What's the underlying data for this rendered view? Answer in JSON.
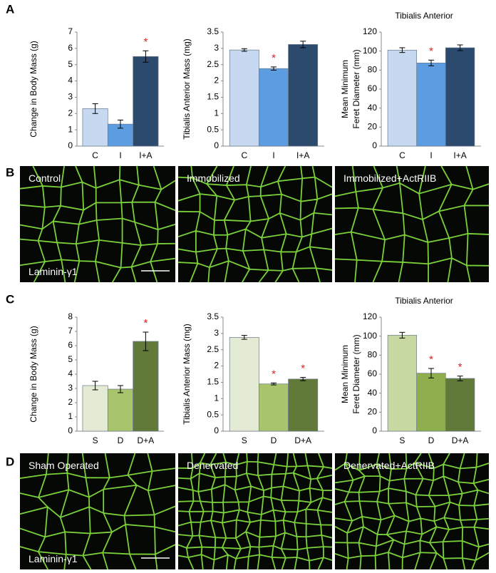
{
  "panel_labels": [
    "A",
    "B",
    "C",
    "D"
  ],
  "chart_data": [
    {
      "type": "bar",
      "ylabel": "Change  in Body Mass (g)",
      "categories": [
        "C",
        "I",
        "I+A"
      ],
      "values": [
        2.3,
        1.35,
        5.5
      ],
      "errors": [
        0.3,
        0.25,
        0.35
      ],
      "colors": [
        "#c6d9f0",
        "#5c9de2",
        "#2c4a6e"
      ],
      "markers": [
        null,
        null,
        "*"
      ],
      "ylim": [
        0,
        7
      ],
      "yticks": [
        0,
        1,
        2,
        3,
        4,
        5,
        6,
        7
      ]
    },
    {
      "type": "bar",
      "ylabel": "Tibialis Anterior Mass (mg)",
      "categories": [
        "C",
        "I",
        "I+A"
      ],
      "values": [
        2.95,
        2.38,
        3.12
      ],
      "errors": [
        0.04,
        0.05,
        0.1
      ],
      "colors": [
        "#c6d9f0",
        "#5c9de2",
        "#2c4a6e"
      ],
      "markers": [
        null,
        "*",
        null
      ],
      "ylim": [
        0,
        3.5
      ],
      "yticks": [
        0,
        0.5,
        1,
        1.5,
        2,
        2.5,
        3,
        3.5
      ]
    },
    {
      "type": "bar",
      "title": "Tibialis Anterior",
      "ylabel": [
        "Mean Minimum",
        "Feret Diameter (mm)"
      ],
      "categories": [
        "C",
        "I",
        "I+A"
      ],
      "values": [
        101,
        87.5,
        103.5
      ],
      "errors": [
        2.5,
        3,
        3
      ],
      "colors": [
        "#c6d9f0",
        "#5c9de2",
        "#2c4a6e"
      ],
      "markers": [
        null,
        "*",
        null
      ],
      "ylim": [
        0,
        120
      ],
      "yticks": [
        0,
        20,
        40,
        60,
        80,
        100,
        120
      ]
    },
    {
      "type": "bar",
      "ylabel": "Change  in Body Mass (g)",
      "categories": [
        "S",
        "D",
        "D+A"
      ],
      "values": [
        3.2,
        2.95,
        6.3
      ],
      "errors": [
        0.3,
        0.25,
        0.65
      ],
      "colors": [
        "#e3ebd4",
        "#a8c46d",
        "#617a3a"
      ],
      "markers": [
        null,
        null,
        "*"
      ],
      "ylim": [
        0,
        8
      ],
      "yticks": [
        0,
        1,
        2,
        3,
        4,
        5,
        6,
        7,
        8
      ]
    },
    {
      "type": "bar",
      "ylabel": "Tibialis Anterior Mass (mg)",
      "categories": [
        "S",
        "D",
        "D+A"
      ],
      "values": [
        2.88,
        1.45,
        1.6
      ],
      "errors": [
        0.06,
        0.03,
        0.05
      ],
      "colors": [
        "#e3ebd4",
        "#a8c46d",
        "#617a3a"
      ],
      "markers": [
        null,
        "*",
        "*"
      ],
      "ylim": [
        0,
        3.5
      ],
      "yticks": [
        0,
        0.5,
        1,
        1.5,
        2,
        2.5,
        3,
        3.5
      ]
    },
    {
      "type": "bar",
      "title": "Tibialis Anterior",
      "ylabel": [
        "Mean Minimum",
        "Feret Diameter (mm)"
      ],
      "categories": [
        "S",
        "D",
        "D+A"
      ],
      "values": [
        101,
        61,
        55.5
      ],
      "errors": [
        3,
        5,
        2.5
      ],
      "colors": [
        "#c8d8a2",
        "#8fae4e",
        "#617a3a"
      ],
      "markers": [
        null,
        "*",
        "*"
      ],
      "ylim": [
        0,
        120
      ],
      "yticks": [
        0,
        20,
        40,
        60,
        80,
        100,
        120
      ]
    }
  ],
  "image_panels": [
    {
      "labels": [
        "Control",
        "Immobilized",
        "Immobilized+ActRIIB"
      ],
      "stain": "Laminin-γ1"
    },
    {
      "labels": [
        "Sham Operated",
        "Denervated",
        "Denervated+ActRIIB"
      ],
      "stain": "Laminin-γ1"
    }
  ]
}
